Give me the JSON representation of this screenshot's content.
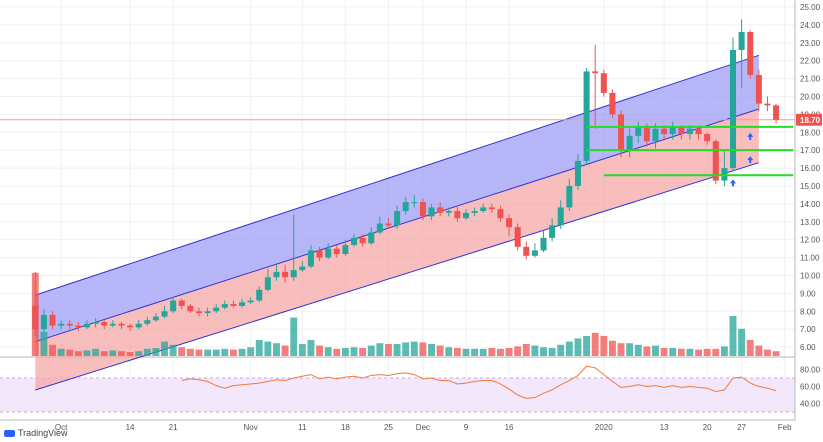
{
  "colors": {
    "up": "#26a69a",
    "down": "#ef5350",
    "channel_upper_fill": "#9e9ef5",
    "channel_lower_fill": "#f5a7a7",
    "channel_line": "#3333cc",
    "support_line": "#22dd22",
    "price_line": "#f0a090",
    "price_badge": "#ef5350",
    "rsi_line": "#f07b3f",
    "rsi_band": "#f3e8fb",
    "arrow": "#2962ff"
  },
  "watermark": {
    "text": "TradingView",
    "icon": "tradingview-logo-icon"
  },
  "chart_data": {
    "type": "candlestick",
    "title": "",
    "x": [
      "Sep 27",
      "Sep 30",
      "Oct 1",
      "Oct 2",
      "Oct 3",
      "Oct 4",
      "Oct 7",
      "Oct 8",
      "Oct 9",
      "Oct 10",
      "Oct 11",
      "Oct 14",
      "Oct 15",
      "Oct 16",
      "Oct 17",
      "Oct 18",
      "Oct 21",
      "Oct 22",
      "Oct 23",
      "Oct 24",
      "Oct 25",
      "Oct 28",
      "Oct 29",
      "Oct 30",
      "Oct 31",
      "Nov 1",
      "Nov 4",
      "Nov 5",
      "Nov 6",
      "Nov 7",
      "Nov 8",
      "Nov 11",
      "Nov 12",
      "Nov 13",
      "Nov 14",
      "Nov 15",
      "Nov 18",
      "Nov 19",
      "Nov 20",
      "Nov 21",
      "Nov 22",
      "Nov 25",
      "Nov 26",
      "Nov 27",
      "Nov 29",
      "Dec 2",
      "Dec 3",
      "Dec 4",
      "Dec 5",
      "Dec 6",
      "Dec 9",
      "Dec 10",
      "Dec 11",
      "Dec 12",
      "Dec 13",
      "Dec 16",
      "Dec 17",
      "Dec 18",
      "Dec 19",
      "Dec 20",
      "Dec 23",
      "Dec 24",
      "Dec 26",
      "Dec 27",
      "Dec 30",
      "Dec 31",
      "Jan 2",
      "Jan 3",
      "Jan 6",
      "Jan 7",
      "Jan 8",
      "Jan 9",
      "Jan 10",
      "Jan 13",
      "Jan 14",
      "Jan 15",
      "Jan 16",
      "Jan 17",
      "Jan 21",
      "Jan 22",
      "Jan 23",
      "Jan 24",
      "Jan 27",
      "Jan 28",
      "Jan 29",
      "Jan 30",
      "Jan 31"
    ],
    "open": [
      8.3,
      7.0,
      7.8,
      7.2,
      7.3,
      7.2,
      7.1,
      7.3,
      7.4,
      7.2,
      7.3,
      7.2,
      7.1,
      7.3,
      7.5,
      7.7,
      8.0,
      8.6,
      8.3,
      8.0,
      7.9,
      8.0,
      8.2,
      8.4,
      8.3,
      8.5,
      8.6,
      9.2,
      9.9,
      10.2,
      9.9,
      10.3,
      10.5,
      11.4,
      11.0,
      11.5,
      11.2,
      11.7,
      12.1,
      11.8,
      12.4,
      12.9,
      12.8,
      13.6,
      14.1,
      14.1,
      13.3,
      13.8,
      13.5,
      13.6,
      13.2,
      13.5,
      13.6,
      13.8,
      13.7,
      13.2,
      12.7,
      11.6,
      11.1,
      11.4,
      12.1,
      12.8,
      13.8,
      15.0,
      16.4,
      21.4,
      21.3,
      20.2,
      19.0,
      17.0,
      17.8,
      18.3,
      17.5,
      18.2,
      17.9,
      18.3,
      17.9,
      18.2,
      17.9,
      17.5,
      15.3,
      16.0,
      22.6,
      23.6,
      21.2,
      19.6,
      19.5
    ],
    "close": [
      7.0,
      7.8,
      7.2,
      7.3,
      7.2,
      7.1,
      7.3,
      7.4,
      7.2,
      7.3,
      7.2,
      7.1,
      7.3,
      7.5,
      7.7,
      8.0,
      8.6,
      8.3,
      8.0,
      7.9,
      8.0,
      8.2,
      8.4,
      8.3,
      8.5,
      8.6,
      9.2,
      9.9,
      10.2,
      9.9,
      10.3,
      10.5,
      11.4,
      11.0,
      11.5,
      11.2,
      11.7,
      12.1,
      11.8,
      12.4,
      12.9,
      12.8,
      13.6,
      14.1,
      14.1,
      13.3,
      13.8,
      13.5,
      13.6,
      13.2,
      13.5,
      13.6,
      13.8,
      13.7,
      13.2,
      12.7,
      11.6,
      11.1,
      11.4,
      12.1,
      12.8,
      13.8,
      15.0,
      16.4,
      21.4,
      21.3,
      20.2,
      19.0,
      17.0,
      17.8,
      18.3,
      17.5,
      18.2,
      17.9,
      18.3,
      17.9,
      18.2,
      17.9,
      17.5,
      15.3,
      16.0,
      22.6,
      23.6,
      21.2,
      19.6,
      19.5,
      18.7
    ],
    "high": [
      10.2,
      8.1,
      8.0,
      7.5,
      7.5,
      7.4,
      7.5,
      7.6,
      7.5,
      7.5,
      7.4,
      7.3,
      7.5,
      7.7,
      7.9,
      8.3,
      8.8,
      8.7,
      8.4,
      8.2,
      8.2,
      8.4,
      8.6,
      8.6,
      8.7,
      8.8,
      9.4,
      10.4,
      10.6,
      10.6,
      13.4,
      10.8,
      11.7,
      11.6,
      11.8,
      11.7,
      12.0,
      12.3,
      12.3,
      12.7,
      13.3,
      13.2,
      13.9,
      14.4,
      14.5,
      14.3,
      14.0,
      14.1,
      13.8,
      13.9,
      13.7,
      13.8,
      14.0,
      14.0,
      13.9,
      13.4,
      12.9,
      11.9,
      11.8,
      12.5,
      13.2,
      14.2,
      15.4,
      16.8,
      21.6,
      22.9,
      21.5,
      20.4,
      19.2,
      18.2,
      18.6,
      18.5,
      18.5,
      18.4,
      18.6,
      18.4,
      18.4,
      18.4,
      18.0,
      17.6,
      17.0,
      23.3,
      24.3,
      23.7,
      21.5,
      20.0,
      19.6
    ],
    "low": [
      6.6,
      6.8,
      7.0,
      7.0,
      7.0,
      6.9,
      7.0,
      7.1,
      7.0,
      7.1,
      7.0,
      6.9,
      7.0,
      7.2,
      7.4,
      7.6,
      7.9,
      8.1,
      7.9,
      7.7,
      7.7,
      7.9,
      8.1,
      8.2,
      8.2,
      8.4,
      8.5,
      9.1,
      9.7,
      9.6,
      9.7,
      10.2,
      10.4,
      10.8,
      10.9,
      11.0,
      11.1,
      11.6,
      11.6,
      11.7,
      12.3,
      12.6,
      12.6,
      13.4,
      13.8,
      13.1,
      13.1,
      13.3,
      13.3,
      13.0,
      13.1,
      13.3,
      13.5,
      13.5,
      13.0,
      12.2,
      11.4,
      10.9,
      11.0,
      11.3,
      11.9,
      12.6,
      13.6,
      14.8,
      16.2,
      18.2,
      20.0,
      18.8,
      16.6,
      16.6,
      17.4,
      17.2,
      17.1,
      17.6,
      17.6,
      17.6,
      17.6,
      17.6,
      17.3,
      15.1,
      15.0,
      15.8,
      20.5,
      21.0,
      19.2,
      19.2,
      18.5
    ],
    "volume": [
      10.4,
      3.0,
      1.4,
      0.9,
      0.8,
      0.6,
      0.7,
      0.9,
      0.6,
      0.7,
      0.6,
      0.5,
      0.6,
      0.9,
      1.0,
      1.8,
      1.4,
      1.1,
      0.9,
      0.8,
      0.8,
      0.8,
      0.9,
      0.8,
      0.9,
      1.1,
      2.0,
      1.8,
      1.6,
      1.3,
      4.8,
      1.5,
      2.0,
      1.3,
      1.1,
      0.9,
      1.0,
      1.1,
      1.0,
      1.3,
      1.6,
      1.5,
      1.5,
      1.7,
      1.8,
      1.7,
      1.5,
      1.3,
      1.1,
      1.0,
      0.9,
      0.9,
      0.9,
      1.0,
      0.9,
      1.0,
      1.2,
      1.5,
      1.3,
      1.1,
      1.0,
      1.4,
      1.8,
      2.2,
      2.5,
      2.9,
      2.5,
      1.9,
      1.6,
      1.6,
      1.4,
      1.2,
      1.3,
      1.0,
      1.0,
      0.9,
      0.9,
      0.8,
      0.9,
      0.9,
      1.2,
      5.0,
      3.4,
      2.0,
      1.3,
      0.8,
      0.6
    ],
    "rsi": [
      null,
      null,
      null,
      null,
      null,
      null,
      null,
      null,
      null,
      null,
      null,
      null,
      null,
      null,
      null,
      null,
      null,
      67,
      69,
      68,
      66,
      61,
      58,
      61,
      62,
      63,
      64,
      66,
      68,
      67,
      70,
      72,
      74,
      69,
      71,
      69,
      71,
      72,
      70,
      73,
      74,
      73,
      75,
      76,
      74,
      69,
      70,
      67,
      67,
      63,
      64,
      66,
      67,
      67,
      63,
      57,
      50,
      46,
      47,
      52,
      56,
      62,
      67,
      73,
      84,
      82,
      74,
      66,
      59,
      60,
      62,
      60,
      61,
      59,
      61,
      59,
      60,
      59,
      58,
      54,
      56,
      70,
      71,
      64,
      60,
      58,
      55
    ],
    "price_axis": {
      "min": 5.5,
      "max": 25.0,
      "ticks": [
        "6.00",
        "7.00",
        "8.00",
        "9.00",
        "10.00",
        "11.00",
        "12.00",
        "13.00",
        "14.00",
        "15.00",
        "16.00",
        "17.00",
        "18.00",
        "19.00",
        "20.00",
        "21.00",
        "22.00",
        "23.00",
        "24.00",
        "25.00"
      ]
    },
    "rsi_axis": {
      "min": 30,
      "max": 90,
      "ticks": [
        "40.00",
        "60.00",
        "80.00"
      ],
      "band": [
        30,
        70
      ]
    },
    "volume_max": 11,
    "x_ticks": [
      {
        "label": "Oct",
        "index": 3
      },
      {
        "label": "14",
        "index": 11
      },
      {
        "label": "21",
        "index": 16
      },
      {
        "label": "Nov",
        "index": 25
      },
      {
        "label": "11",
        "index": 31
      },
      {
        "label": "18",
        "index": 36
      },
      {
        "label": "25",
        "index": 41
      },
      {
        "label": "Dec",
        "index": 45
      },
      {
        "label": "9",
        "index": 50
      },
      {
        "label": "16",
        "index": 55
      },
      {
        "label": "2020",
        "index": 66
      },
      {
        "label": "13",
        "index": 73
      },
      {
        "label": "20",
        "index": 78
      },
      {
        "label": "27",
        "index": 82
      },
      {
        "label": "Feb",
        "index": 87
      }
    ],
    "last_price": {
      "value": 18.7,
      "label": "18.70"
    },
    "channel": {
      "upper": {
        "start": {
          "index": 0,
          "price": 8.9
        },
        "end": {
          "index": 84,
          "price": 22.3
        }
      },
      "middle": {
        "start": {
          "index": 0,
          "price": 6.3
        },
        "end": {
          "index": 84,
          "price": 19.3
        }
      },
      "lower": {
        "start": {
          "index": 0,
          "price": 3.6
        },
        "end": {
          "index": 84,
          "price": 16.3
        }
      }
    },
    "horizontal_levels": [
      {
        "price": 18.3,
        "from_index": 64,
        "to_index": 88
      },
      {
        "price": 17.0,
        "from_index": 64,
        "to_index": 88
      },
      {
        "price": 15.6,
        "from_index": 66,
        "to_index": 88
      }
    ],
    "arrows": [
      {
        "index": 83,
        "price": 17.8
      },
      {
        "index": 83,
        "price": 16.5
      },
      {
        "index": 81,
        "price": 15.2
      }
    ],
    "grid": true
  }
}
